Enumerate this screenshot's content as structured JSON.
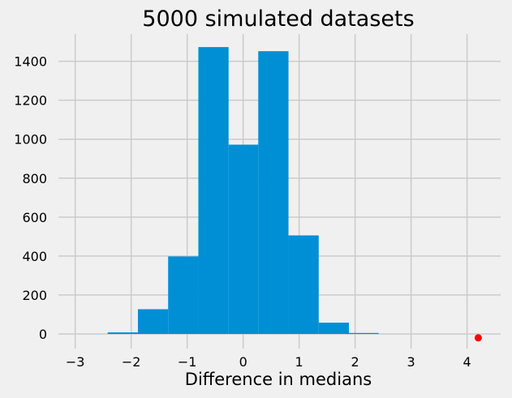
{
  "chart_data": {
    "type": "histogram",
    "title": "5000 simulated datasets",
    "xlabel": "Difference in medians",
    "ylabel": "",
    "xlim": [
      -3.3,
      4.6
    ],
    "ylim": [
      -75,
      1540
    ],
    "xticks": [
      -3,
      -2,
      -1,
      0,
      1,
      2,
      3,
      4
    ],
    "yticks": [
      0,
      200,
      400,
      600,
      800,
      1000,
      1200,
      1400
    ],
    "grid": true,
    "bins": [
      {
        "x0": -2.42,
        "x1": -1.88,
        "count": 8
      },
      {
        "x0": -1.88,
        "x1": -1.34,
        "count": 127
      },
      {
        "x0": -1.34,
        "x1": -0.8,
        "count": 398
      },
      {
        "x0": -0.8,
        "x1": -0.26,
        "count": 1473
      },
      {
        "x0": -0.26,
        "x1": 0.27,
        "count": 972
      },
      {
        "x0": 0.27,
        "x1": 0.81,
        "count": 1452
      },
      {
        "x0": 0.81,
        "x1": 1.35,
        "count": 506
      },
      {
        "x0": 1.35,
        "x1": 1.89,
        "count": 58
      },
      {
        "x0": 1.89,
        "x1": 2.42,
        "count": 5
      }
    ],
    "marker": {
      "x": 4.2,
      "y": -20,
      "color": "#ff0000"
    },
    "bar_color": "#008fd5"
  }
}
